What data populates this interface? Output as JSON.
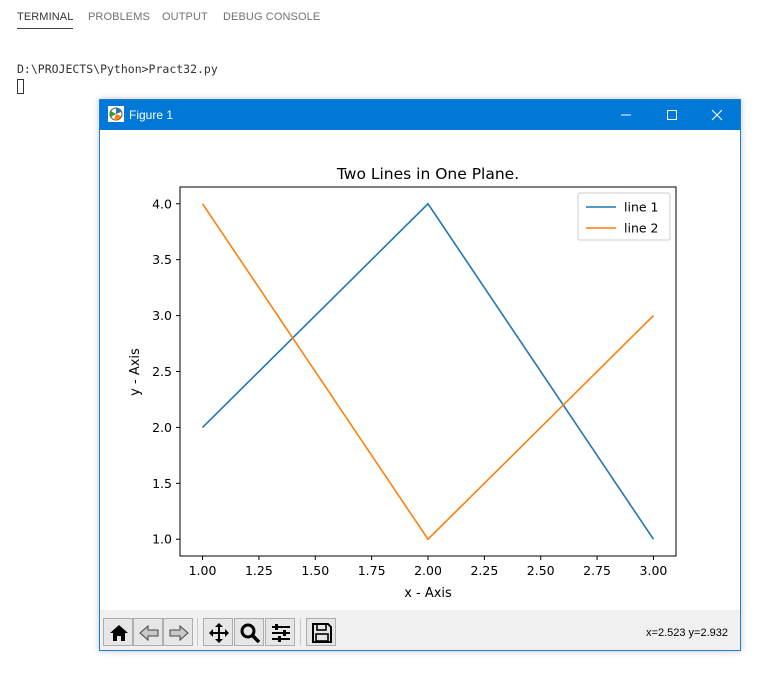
{
  "panel": {
    "tabs": [
      {
        "label": "TERMINAL",
        "active": true
      },
      {
        "label": "PROBLEMS",
        "active": false
      },
      {
        "label": "OUTPUT",
        "active": false
      },
      {
        "label": "DEBUG CONSOLE",
        "active": false
      }
    ],
    "terminal_line": "D:\\PROJECTS\\Python>Pract32.py"
  },
  "window": {
    "title": "Figure 1",
    "titlebar_color": "#0078d7"
  },
  "toolbar": {
    "buttons": [
      "home-icon",
      "back-arrow-icon",
      "forward-arrow-icon",
      "pan-move-icon",
      "zoom-magnifier-icon",
      "configure-subplots-icon",
      "save-floppy-icon"
    ],
    "coords": "x=2.523 y=2.932"
  },
  "chart_data": {
    "type": "line",
    "title": "Two Lines in One Plane.",
    "xlabel": "x - Axis",
    "ylabel": "y - Axis",
    "xlim": [
      0.9,
      3.1
    ],
    "ylim": [
      0.85,
      4.15
    ],
    "xticks": [
      "1.00",
      "1.25",
      "1.50",
      "1.75",
      "2.00",
      "2.25",
      "2.50",
      "2.75",
      "3.00"
    ],
    "yticks": [
      "1.0",
      "1.5",
      "2.0",
      "2.5",
      "3.0",
      "3.5",
      "4.0"
    ],
    "grid": false,
    "legend_position": "top-right",
    "series": [
      {
        "name": "line 1",
        "color": "#1f77b4",
        "x": [
          1,
          2,
          3
        ],
        "y": [
          2,
          4,
          1
        ]
      },
      {
        "name": "line 2",
        "color": "#ff7f0e",
        "x": [
          1,
          2,
          3
        ],
        "y": [
          4,
          1,
          3
        ]
      }
    ]
  }
}
